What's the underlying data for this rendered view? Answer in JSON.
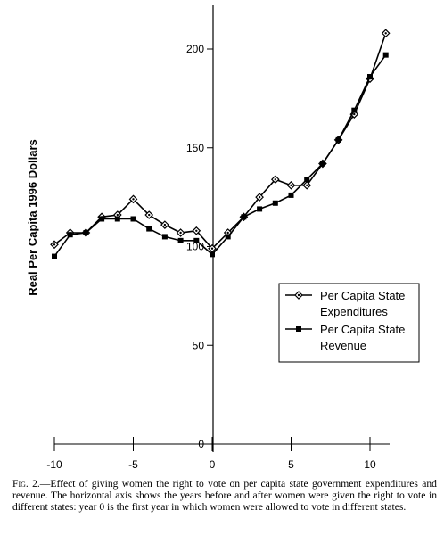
{
  "chart_data": {
    "type": "line",
    "title": "",
    "xlabel": "",
    "ylabel": "Real Per Capita 1996 Dollars",
    "xlim": [
      -10,
      11
    ],
    "ylim": [
      0,
      220
    ],
    "x_ticks": [
      -10,
      -5,
      0,
      5,
      10
    ],
    "y_ticks": [
      0,
      50,
      100,
      150,
      200
    ],
    "x_tick_labels": [
      "-10",
      "-5",
      "0",
      "5",
      "10"
    ],
    "y_tick_labels": [
      "0",
      "50",
      "100",
      "150",
      "200"
    ],
    "x": [
      -10,
      -9,
      -8,
      -7,
      -6,
      -5,
      -4,
      -3,
      -2,
      -1,
      0,
      1,
      2,
      3,
      4,
      5,
      6,
      7,
      8,
      9,
      10,
      11
    ],
    "series": [
      {
        "name": "Per Capita State Expenditures",
        "marker": "diamond",
        "values": [
          101,
          107,
          107,
          115,
          116,
          124,
          116,
          111,
          107,
          108,
          99,
          107,
          115,
          125,
          134,
          131,
          131,
          142,
          154,
          167,
          185,
          208
        ]
      },
      {
        "name": "Per Capita State Revenue",
        "marker": "square",
        "values": [
          95,
          106,
          107,
          114,
          114,
          114,
          109,
          105,
          103,
          103,
          96,
          105,
          115,
          119,
          122,
          126,
          134,
          142,
          154,
          169,
          186,
          197
        ]
      }
    ],
    "legend": {
      "position": "lower-right",
      "entries": [
        [
          "Per Capita State",
          "Expenditures"
        ],
        [
          "Per Capita State",
          "Revenue"
        ]
      ]
    },
    "grid": false
  },
  "caption": {
    "fig_label": "Fig. 2.",
    "text": "—Effect of giving women the right to vote on per capita state government expenditures and revenue. The horizontal axis shows the years before and after women were given the right to vote in different states: year 0 is the first year in which women were allowed to vote in different states."
  },
  "colors": {
    "line": "#000000",
    "background": "#ffffff"
  }
}
